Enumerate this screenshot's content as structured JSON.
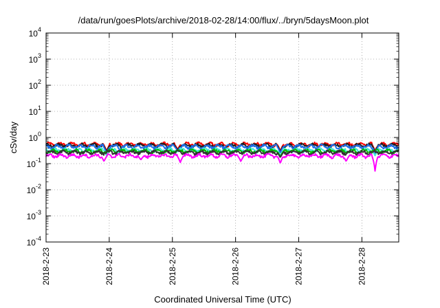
{
  "chart_data": {
    "type": "line",
    "title": "/data/run/goesPlots/archive/2018-02-28/14:00/flux/../bryn/5daysMoon.plot",
    "xlabel": "Coordinated Universal Time (UTC)",
    "ylabel": "cSv/day",
    "yscale": "log",
    "ylim": [
      0.0001,
      10000
    ],
    "xlim": [
      "2018-2-23",
      "2018-2-28 14:00"
    ],
    "grid": true,
    "y_ticks": [
      {
        "base": "10",
        "exp": "-4"
      },
      {
        "base": "10",
        "exp": "-3"
      },
      {
        "base": "10",
        "exp": "-2"
      },
      {
        "base": "10",
        "exp": "-1"
      },
      {
        "base": "10",
        "exp": "0"
      },
      {
        "base": "10",
        "exp": "1"
      },
      {
        "base": "10",
        "exp": "2"
      },
      {
        "base": "10",
        "exp": "3"
      },
      {
        "base": "10",
        "exp": "4"
      }
    ],
    "x_ticks": [
      "2018-2-23",
      "2018-2-24",
      "2018-2-25",
      "2018-2-26",
      "2018-2-27",
      "2018-2-28"
    ],
    "series": [
      {
        "color": "#ff0000",
        "baseline": 0.55,
        "dips": [
          {
            "x": "2018-2-23 23:00",
            "y": 0.3
          },
          {
            "x": "2018-2-25 02:00",
            "y": 0.35
          },
          {
            "x": "2018-2-26 17:00",
            "y": 0.3
          },
          {
            "x": "2018-2-28 05:00",
            "y": 0.3
          }
        ]
      },
      {
        "color": "#1f1f1f",
        "baseline": 0.5,
        "dips": [
          {
            "x": "2018-2-23 23:00",
            "y": 0.28
          },
          {
            "x": "2018-2-25 02:00",
            "y": 0.32
          },
          {
            "x": "2018-2-26 17:00",
            "y": 0.28
          },
          {
            "x": "2018-2-28 05:00",
            "y": 0.28
          }
        ]
      },
      {
        "color": "#1e6fe8",
        "baseline": 0.45,
        "dips": [
          {
            "x": "2018-2-23 23:00",
            "y": 0.25
          },
          {
            "x": "2018-2-25 02:00",
            "y": 0.3
          },
          {
            "x": "2018-2-26 17:00",
            "y": 0.25
          },
          {
            "x": "2018-2-28 05:00",
            "y": 0.25
          }
        ]
      },
      {
        "color": "#40e8d8",
        "baseline": 0.33,
        "dips": [
          {
            "x": "2018-2-23 23:00",
            "y": 0.2
          },
          {
            "x": "2018-2-26 17:00",
            "y": 0.2
          },
          {
            "x": "2018-2-28 05:00",
            "y": 0.2
          }
        ]
      },
      {
        "color": "#00bb00",
        "baseline": 0.3,
        "dips": [
          {
            "x": "2018-2-26 17:00",
            "y": 0.18
          }
        ]
      },
      {
        "color": "#333333",
        "baseline": 0.27,
        "dips": [
          {
            "x": "2018-2-26 17:00",
            "y": 0.17
          }
        ]
      },
      {
        "color": "#ff00ff",
        "baseline": 0.2,
        "dips": [
          {
            "x": "2018-2-23 22:00",
            "y": 0.12
          },
          {
            "x": "2018-2-24 12:00",
            "y": 0.14
          },
          {
            "x": "2018-2-25 03:00",
            "y": 0.11
          },
          {
            "x": "2018-2-26 02:00",
            "y": 0.12
          },
          {
            "x": "2018-2-26 17:00",
            "y": 0.1
          },
          {
            "x": "2018-2-27 18:00",
            "y": 0.12
          },
          {
            "x": "2018-2-28 05:00",
            "y": 0.05
          }
        ]
      }
    ]
  }
}
